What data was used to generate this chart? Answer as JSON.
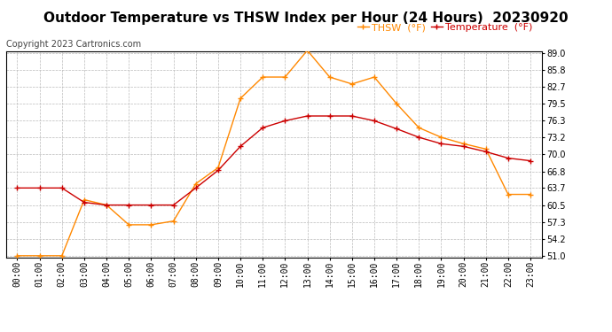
{
  "title": "Outdoor Temperature vs THSW Index per Hour (24 Hours)  20230920",
  "copyright": "Copyright 2023 Cartronics.com",
  "hours": [
    "00:00",
    "01:00",
    "02:00",
    "03:00",
    "04:00",
    "05:00",
    "06:00",
    "07:00",
    "08:00",
    "09:00",
    "10:00",
    "11:00",
    "12:00",
    "13:00",
    "14:00",
    "15:00",
    "16:00",
    "17:00",
    "18:00",
    "19:00",
    "20:00",
    "21:00",
    "22:00",
    "23:00"
  ],
  "temperature": [
    63.7,
    63.7,
    63.7,
    61.0,
    60.5,
    60.5,
    60.5,
    60.5,
    63.7,
    67.0,
    71.5,
    75.0,
    76.3,
    77.2,
    77.2,
    77.2,
    76.3,
    74.8,
    73.2,
    72.0,
    71.5,
    70.5,
    69.3,
    68.8
  ],
  "thsw": [
    51.0,
    51.0,
    51.0,
    61.5,
    60.5,
    56.8,
    56.8,
    57.5,
    64.5,
    67.5,
    80.5,
    84.5,
    84.5,
    89.5,
    84.5,
    83.2,
    84.5,
    79.5,
    75.0,
    73.2,
    72.0,
    71.0,
    62.5,
    62.5
  ],
  "temp_color": "#cc0000",
  "thsw_color": "#ff8800",
  "bg_color": "#ffffff",
  "grid_color": "#bbbbbb",
  "ylim_min": 51.0,
  "ylim_max": 89.0,
  "yticks": [
    51.0,
    54.2,
    57.3,
    60.5,
    63.7,
    66.8,
    70.0,
    73.2,
    76.3,
    79.5,
    82.7,
    85.8,
    89.0
  ],
  "legend_thsw": "THSW  (°F)",
  "legend_temp": "Temperature  (°F)",
  "title_fontsize": 11,
  "copyright_fontsize": 7,
  "legend_fontsize": 8,
  "tick_fontsize": 7
}
